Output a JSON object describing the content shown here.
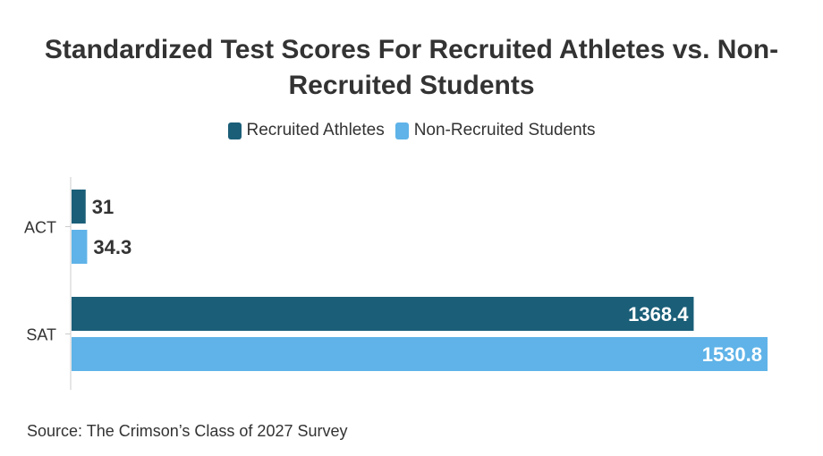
{
  "title": "Standardized Test Scores For Recruited Athletes vs. Non-Recruited Students",
  "source": "Source: The Crimson’s Class of 2027 Survey",
  "chart_data": {
    "type": "bar",
    "orientation": "horizontal",
    "title": "Standardized Test Scores For Recruited Athletes vs. Non-Recruited Students",
    "categories": [
      "ACT",
      "SAT"
    ],
    "series": [
      {
        "name": "Recruited Athletes",
        "values": [
          31,
          1368.4
        ],
        "color": "#1a5e78"
      },
      {
        "name": "Non-Recruited Students",
        "values": [
          34.3,
          1530.8
        ],
        "color": "#5fb3e8"
      }
    ],
    "legend": "top-center",
    "grid": false,
    "xlim": [
      0,
      1530.8
    ]
  }
}
